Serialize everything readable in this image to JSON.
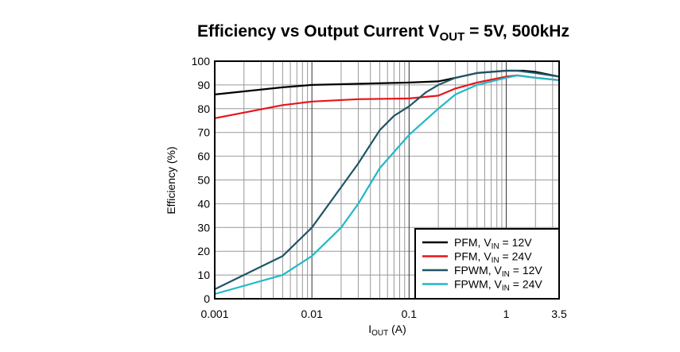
{
  "chart_data": {
    "type": "line",
    "title": {
      "main": "Efficiency vs Output Current V",
      "sub": "OUT",
      "rest": " = 5V, 500kHz"
    },
    "xlabel": {
      "main": "I",
      "sub": "OUT",
      "rest": " (A)"
    },
    "ylabel": "Efficiency (%)",
    "xscale": "log",
    "xlim": [
      0.001,
      3.5
    ],
    "ylim": [
      0,
      100
    ],
    "xticks": [
      0.001,
      0.01,
      0.1,
      1,
      3.5
    ],
    "xtick_labels": [
      "0.001",
      "0.01",
      "0.1",
      "1",
      "3.5"
    ],
    "yticks": [
      0,
      10,
      20,
      30,
      40,
      50,
      60,
      70,
      80,
      90,
      100
    ],
    "grid": true,
    "legend_position": "bottom-right",
    "series": [
      {
        "name": {
          "main": "PFM, V",
          "sub": "IN",
          "rest": " = 12V"
        },
        "color": "#000000",
        "x": [
          0.001,
          0.005,
          0.01,
          0.1,
          0.2,
          0.3,
          0.5,
          1,
          1.5,
          2,
          3.5
        ],
        "y": [
          86,
          89,
          90,
          91,
          91.5,
          93,
          95,
          96,
          96,
          95.5,
          93.5
        ]
      },
      {
        "name": {
          "main": "PFM, V",
          "sub": "IN",
          "rest": " = 24V"
        },
        "color": "#e8141c",
        "x": [
          0.001,
          0.005,
          0.01,
          0.03,
          0.1,
          0.2,
          0.3,
          0.5,
          1,
          1.3,
          2,
          3.5
        ],
        "y": [
          76,
          81.5,
          83,
          84,
          84.3,
          85.5,
          88.5,
          91,
          93.5,
          94,
          93,
          92
        ]
      },
      {
        "name": {
          "main": "FPWM, V",
          "sub": "IN",
          "rest": " = 12V"
        },
        "color": "#1f5566",
        "x": [
          0.001,
          0.005,
          0.01,
          0.02,
          0.03,
          0.05,
          0.07,
          0.1,
          0.15,
          0.2,
          0.3,
          0.5,
          1,
          1.3,
          2,
          3.5
        ],
        "y": [
          4,
          18,
          30,
          47,
          57,
          71,
          77,
          81,
          87,
          90,
          93,
          95,
          96,
          96,
          95,
          93.5
        ]
      },
      {
        "name": {
          "main": "FPWM, V",
          "sub": "IN",
          "rest": " = 24V"
        },
        "color": "#22b8c8",
        "x": [
          0.001,
          0.005,
          0.01,
          0.02,
          0.03,
          0.05,
          0.1,
          0.2,
          0.3,
          0.5,
          1,
          1.3,
          2,
          3.5
        ],
        "y": [
          2,
          10,
          18,
          30,
          40,
          55,
          69,
          80,
          86,
          90,
          93,
          94,
          93,
          92
        ]
      }
    ]
  }
}
